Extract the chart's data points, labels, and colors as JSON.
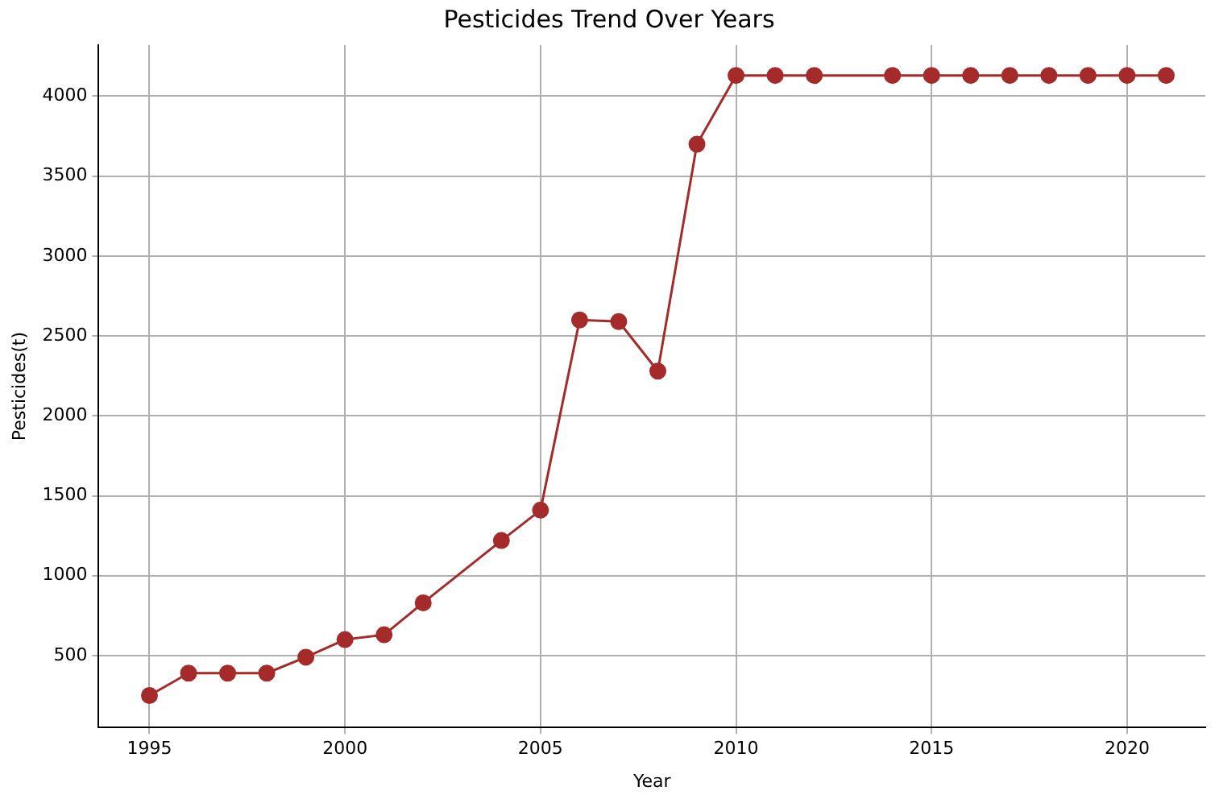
{
  "chart_data": {
    "type": "line",
    "title": "Pesticides Trend Over Years",
    "xlabel": "Year",
    "ylabel": "Pesticides(t)",
    "x": [
      1995,
      1996,
      1997,
      1998,
      1999,
      2000,
      2001,
      2002,
      2004,
      2005,
      2006,
      2007,
      2008,
      2009,
      2010,
      2011,
      2012,
      2014,
      2015,
      2016,
      2017,
      2018,
      2019,
      2020,
      2021
    ],
    "series": [
      {
        "color": "#a52a2a",
        "values": [
          250,
          390,
          390,
          390,
          490,
          600,
          630,
          830,
          1220,
          1410,
          2600,
          2590,
          2280,
          3700,
          4130,
          4130,
          4130,
          4130,
          4130,
          4130,
          4130,
          4130,
          4130,
          4130,
          4130
        ]
      }
    ],
    "xlim": [
      1993.7,
      2022
    ],
    "xticks": [
      1995,
      2000,
      2005,
      2010,
      2015,
      2020
    ],
    "ylim": [
      50,
      4320
    ],
    "yticks": [
      500,
      1000,
      1500,
      2000,
      2500,
      3000,
      3500,
      4000
    ],
    "grid": true,
    "marker": "circle",
    "line_style": "solid"
  }
}
